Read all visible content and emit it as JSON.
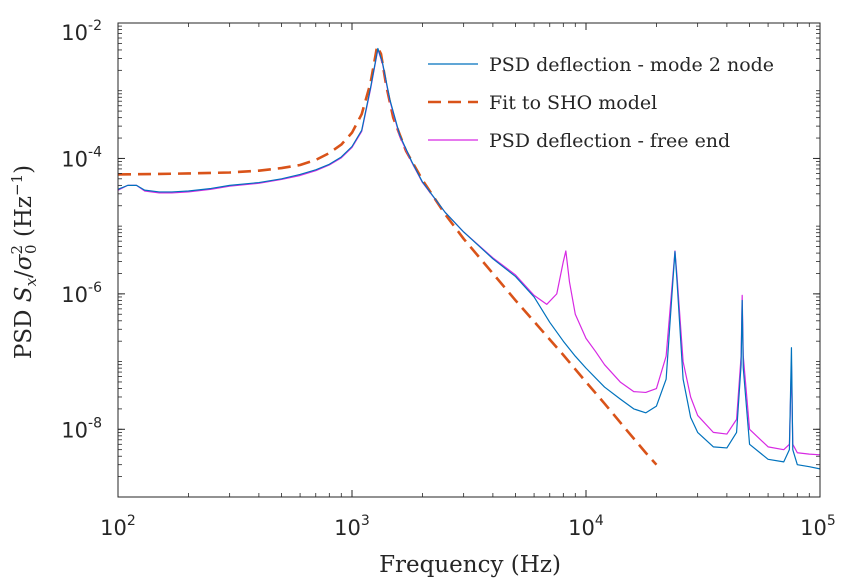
{
  "chart_data": {
    "type": "line",
    "x_scale": "log",
    "y_scale": "log",
    "xlim": [
      100,
      100000
    ],
    "ylim": [
      1e-09,
      0.01
    ],
    "xlabel": "Frequency (Hz)",
    "ylabel": {
      "prefix": "PSD ",
      "symbol_main": "S",
      "symbol_sub": "x",
      "slash": "/",
      "sigma": "σ",
      "sigma_sup": "2",
      "sigma_sub": "0",
      "units_open": " (Hz",
      "units_sup": "−1",
      "units_close": ")"
    },
    "x_ticks": [
      {
        "value": 100,
        "base": "10",
        "exp": "2"
      },
      {
        "value": 1000,
        "base": "10",
        "exp": "3"
      },
      {
        "value": 10000,
        "base": "10",
        "exp": "4"
      },
      {
        "value": 100000,
        "base": "10",
        "exp": "5"
      }
    ],
    "y_ticks": [
      {
        "value": 1e-08,
        "base": "10",
        "exp": "-8"
      },
      {
        "value": 1e-06,
        "base": "10",
        "exp": "-6"
      },
      {
        "value": 0.0001,
        "base": "10",
        "exp": "-4"
      },
      {
        "value": 0.01,
        "base": "10",
        "exp": "-2"
      }
    ],
    "grid": false,
    "box": true,
    "legend_position": "top-right",
    "series": [
      {
        "name": "PSD deflection - mode 2 node",
        "style": "solid",
        "color": "#0072BD",
        "points": [
          [
            100,
            3.5e-05
          ],
          [
            110,
            4e-05
          ],
          [
            120,
            4e-05
          ],
          [
            130,
            3.4e-05
          ],
          [
            150,
            3.2e-05
          ],
          [
            170,
            3.2e-05
          ],
          [
            200,
            3.3e-05
          ],
          [
            250,
            3.6e-05
          ],
          [
            300,
            4e-05
          ],
          [
            400,
            4.4e-05
          ],
          [
            500,
            5e-05
          ],
          [
            600,
            5.8e-05
          ],
          [
            700,
            6.8e-05
          ],
          [
            800,
            8.2e-05
          ],
          [
            900,
            0.000105
          ],
          [
            1000,
            0.00015
          ],
          [
            1100,
            0.00026
          ],
          [
            1200,
            0.0011
          ],
          [
            1290,
            0.0042
          ],
          [
            1350,
            0.0026
          ],
          [
            1450,
            0.00075
          ],
          [
            1600,
            0.00022
          ],
          [
            1800,
            9e-05
          ],
          [
            2000,
            4.5e-05
          ],
          [
            2500,
            1.6e-05
          ],
          [
            3000,
            8.2e-06
          ],
          [
            4000,
            3.3e-06
          ],
          [
            5000,
            1.8e-06
          ],
          [
            6000,
            9e-07
          ],
          [
            7000,
            3.8e-07
          ],
          [
            8000,
            2e-07
          ],
          [
            9000,
            1.2e-07
          ],
          [
            10000,
            8e-08
          ],
          [
            12000,
            4.2e-08
          ],
          [
            14000,
            2.8e-08
          ],
          [
            16000,
            2e-08
          ],
          [
            18000,
            1.75e-08
          ],
          [
            20000,
            2.2e-08
          ],
          [
            22000,
            5.5e-08
          ],
          [
            23500,
            1.5e-06
          ],
          [
            24000,
            4.2e-06
          ],
          [
            24500,
            1.5e-06
          ],
          [
            26000,
            5.5e-08
          ],
          [
            28000,
            1.5e-08
          ],
          [
            30000,
            9e-09
          ],
          [
            35000,
            5.5e-09
          ],
          [
            40000,
            5.3e-09
          ],
          [
            44000,
            9e-09
          ],
          [
            46000,
            9e-08
          ],
          [
            46500,
            8e-07
          ],
          [
            47000,
            8e-08
          ],
          [
            50000,
            6e-09
          ],
          [
            60000,
            3.6e-09
          ],
          [
            70000,
            3.3e-09
          ],
          [
            74000,
            5e-09
          ],
          [
            75500,
            1.6e-07
          ],
          [
            76500,
            5e-09
          ],
          [
            80000,
            3e-09
          ],
          [
            90000,
            2.8e-09
          ],
          [
            100000,
            2.6e-09
          ]
        ]
      },
      {
        "name": "Fit to SHO model",
        "style": "dashed",
        "color": "#D95319",
        "points": [
          [
            100,
            5.8e-05
          ],
          [
            150,
            5.9e-05
          ],
          [
            200,
            6e-05
          ],
          [
            300,
            6.2e-05
          ],
          [
            400,
            6.6e-05
          ],
          [
            500,
            7.2e-05
          ],
          [
            600,
            8e-05
          ],
          [
            700,
            9.5e-05
          ],
          [
            800,
            0.00012
          ],
          [
            900,
            0.00016
          ],
          [
            1000,
            0.00024
          ],
          [
            1100,
            0.00045
          ],
          [
            1200,
            0.0013
          ],
          [
            1280,
            0.0045
          ],
          [
            1330,
            0.0035
          ],
          [
            1400,
            0.0012
          ],
          [
            1500,
            0.0004
          ],
          [
            1700,
            0.00013
          ],
          [
            2000,
            4.8e-05
          ],
          [
            2500,
            1.5e-05
          ],
          [
            3000,
            6.5e-06
          ],
          [
            4000,
            2e-06
          ],
          [
            5000,
            8e-07
          ],
          [
            6000,
            3.9e-07
          ],
          [
            8000,
            1.25e-07
          ],
          [
            10000,
            5e-08
          ],
          [
            12000,
            2.4e-08
          ],
          [
            15000,
            9.5e-09
          ],
          [
            18000,
            4.5e-09
          ],
          [
            20000,
            3e-09
          ]
        ]
      },
      {
        "name": "PSD deflection - free end",
        "style": "solid",
        "color": "#D729E3",
        "points": [
          [
            100,
            3.4e-05
          ],
          [
            110,
            4e-05
          ],
          [
            120,
            4e-05
          ],
          [
            130,
            3.3e-05
          ],
          [
            150,
            3.1e-05
          ],
          [
            170,
            3.1e-05
          ],
          [
            200,
            3.2e-05
          ],
          [
            250,
            3.5e-05
          ],
          [
            300,
            3.9e-05
          ],
          [
            400,
            4.3e-05
          ],
          [
            500,
            4.9e-05
          ],
          [
            600,
            5.6e-05
          ],
          [
            700,
            6.6e-05
          ],
          [
            800,
            8e-05
          ],
          [
            900,
            0.000102
          ],
          [
            1000,
            0.000145
          ],
          [
            1100,
            0.00025
          ],
          [
            1200,
            0.00105
          ],
          [
            1290,
            0.0041
          ],
          [
            1350,
            0.0025
          ],
          [
            1450,
            0.00072
          ],
          [
            1600,
            0.00021
          ],
          [
            1800,
            8.8e-05
          ],
          [
            2000,
            4.4e-05
          ],
          [
            2500,
            1.6e-05
          ],
          [
            3000,
            8.2e-06
          ],
          [
            4000,
            3.4e-06
          ],
          [
            5000,
            1.9e-06
          ],
          [
            6000,
            9.5e-07
          ],
          [
            6800,
            7e-07
          ],
          [
            7500,
            1e-06
          ],
          [
            8000,
            3e-06
          ],
          [
            8200,
            4.3e-06
          ],
          [
            8500,
            1.5e-06
          ],
          [
            9000,
            5e-07
          ],
          [
            10000,
            2.2e-07
          ],
          [
            11000,
            1.4e-07
          ],
          [
            12000,
            9e-08
          ],
          [
            14000,
            5e-08
          ],
          [
            16000,
            3.6e-08
          ],
          [
            18000,
            3.5e-08
          ],
          [
            20000,
            4e-08
          ],
          [
            22000,
            1.2e-07
          ],
          [
            23500,
            1.8e-06
          ],
          [
            24000,
            4.3e-06
          ],
          [
            24500,
            1.8e-06
          ],
          [
            26000,
            1e-07
          ],
          [
            28000,
            3e-08
          ],
          [
            30000,
            1.6e-08
          ],
          [
            35000,
            9e-09
          ],
          [
            40000,
            8.5e-09
          ],
          [
            44000,
            1.4e-08
          ],
          [
            46000,
            1.2e-07
          ],
          [
            46500,
            9.5e-07
          ],
          [
            47000,
            1.2e-07
          ],
          [
            50000,
            1e-08
          ],
          [
            60000,
            5.5e-09
          ],
          [
            70000,
            5e-09
          ],
          [
            74000,
            6e-09
          ],
          [
            75500,
            9e-08
          ],
          [
            76500,
            6e-09
          ],
          [
            80000,
            4.5e-09
          ],
          [
            90000,
            4.3e-09
          ],
          [
            100000,
            4.2e-09
          ]
        ]
      }
    ]
  }
}
